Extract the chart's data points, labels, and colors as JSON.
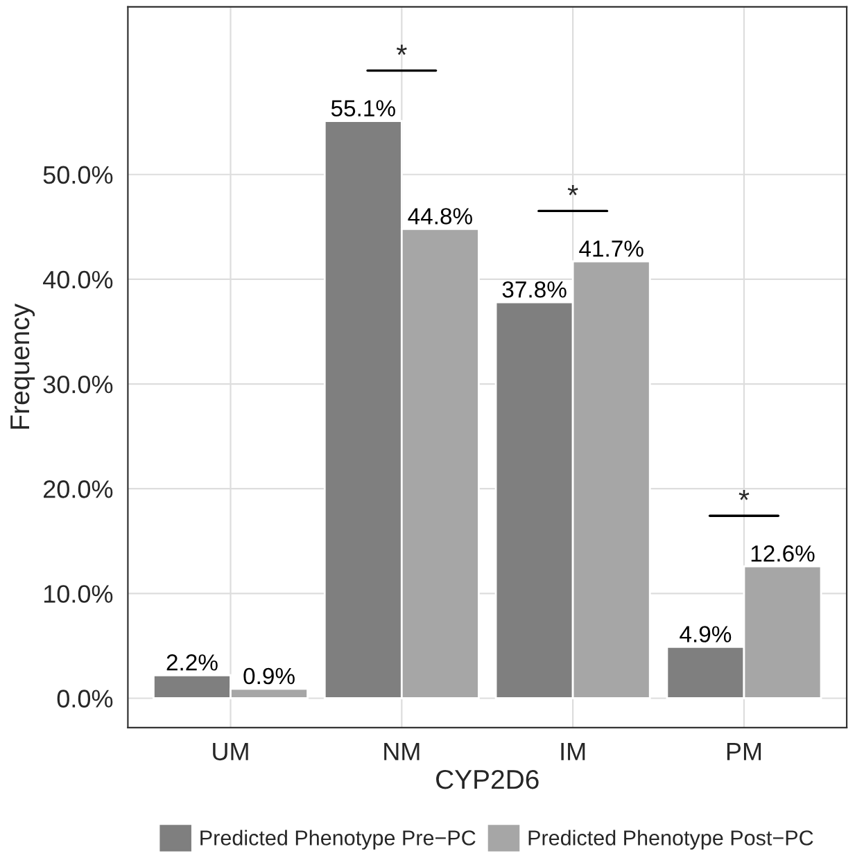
{
  "chart_data": {
    "type": "bar",
    "xlabel": "CYP2D6",
    "ylabel": "Frequency",
    "categories": [
      "UM",
      "NM",
      "IM",
      "PM"
    ],
    "series": [
      {
        "name": "Predicted Phenotype Pre−PC",
        "color": "#7f7f7f",
        "values": [
          2.2,
          55.1,
          37.8,
          4.9
        ],
        "value_labels": [
          "2.2%",
          "55.1%",
          "37.8%",
          "4.9%"
        ]
      },
      {
        "name": "Predicted Phenotype Post−PC",
        "color": "#a6a6a6",
        "values": [
          0.9,
          44.8,
          41.7,
          12.6
        ],
        "value_labels": [
          "0.9%",
          "44.8%",
          "41.7%",
          "12.6%"
        ]
      }
    ],
    "ylim": [
      -2.8,
      66
    ],
    "yticks": [
      {
        "value": 0,
        "label": "0.0%"
      },
      {
        "value": 10,
        "label": "10.0%"
      },
      {
        "value": 20,
        "label": "20.0%"
      },
      {
        "value": 30,
        "label": "30.0%"
      },
      {
        "value": 40,
        "label": "40.0%"
      },
      {
        "value": 50,
        "label": "50.0%"
      }
    ],
    "grid": true,
    "legend": "bottom",
    "annotations": [
      "*",
      "*",
      "*"
    ]
  }
}
